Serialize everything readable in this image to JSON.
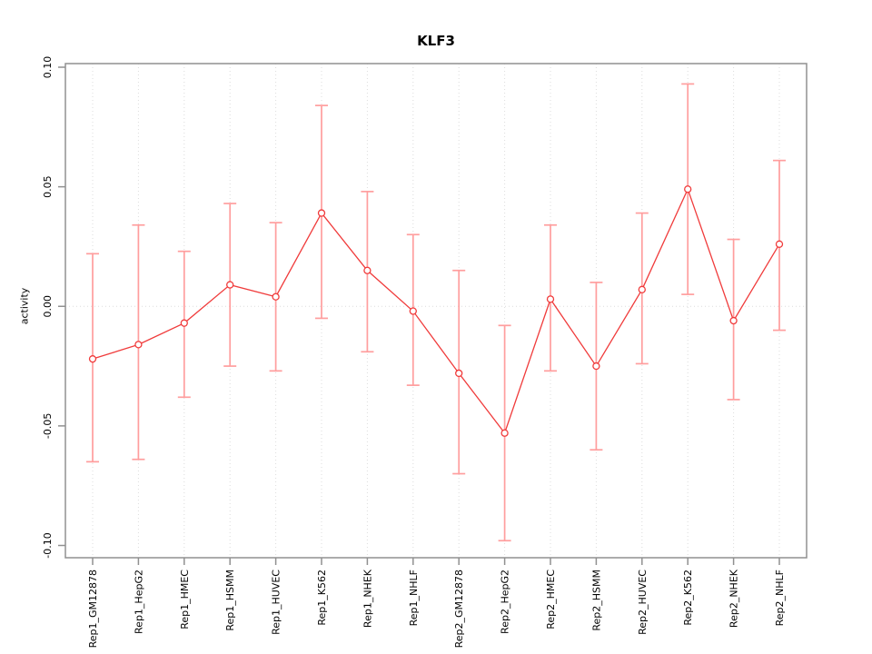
{
  "chart_data": {
    "type": "line",
    "title": "KLF3",
    "xlabel": "",
    "ylabel": "activity",
    "ylim": [
      -0.1,
      0.1
    ],
    "yticks": [
      -0.1,
      -0.05,
      0.0,
      0.05,
      0.1
    ],
    "ytick_labels": [
      "-0.10",
      "-0.05",
      "0.00",
      "0.05",
      "0.10"
    ],
    "grid": {
      "vertical": "dotted line at every category",
      "horizontal_at": 0,
      "style": "dotted"
    },
    "legend": "none",
    "marker": "open-circle",
    "categories": [
      "Rep1_GM12878",
      "Rep1_HepG2",
      "Rep1_HMEC",
      "Rep1_HSMM",
      "Rep1_HUVEC",
      "Rep1_K562",
      "Rep1_NHEK",
      "Rep1_NHLF",
      "Rep2_GM12878",
      "Rep2_HepG2",
      "Rep2_HMEC",
      "Rep2_HSMM",
      "Rep2_HUVEC",
      "Rep2_K562",
      "Rep2_NHEK",
      "Rep2_NHLF"
    ],
    "series": [
      {
        "name": "KLF3 activity",
        "values": [
          -0.022,
          -0.016,
          -0.007,
          0.009,
          0.004,
          0.039,
          0.015,
          -0.002,
          -0.028,
          -0.053,
          0.003,
          -0.025,
          0.007,
          0.049,
          -0.006,
          0.026
        ],
        "error_upper": [
          0.022,
          0.034,
          0.023,
          0.043,
          0.035,
          0.084,
          0.048,
          0.03,
          0.015,
          -0.008,
          0.034,
          0.01,
          0.039,
          0.093,
          0.028,
          0.061
        ],
        "error_lower": [
          -0.065,
          -0.064,
          -0.038,
          -0.025,
          -0.027,
          -0.005,
          -0.019,
          -0.033,
          -0.07,
          -0.098,
          -0.027,
          -0.06,
          -0.024,
          0.005,
          -0.039,
          -0.01
        ]
      }
    ],
    "colors": {
      "line": "#f03b3b",
      "point": "#f03b3b",
      "error_bar": "#ff9e9e",
      "grid": "#dcdcdc",
      "frame": "#909090",
      "text": "#000000",
      "background": "#ffffff"
    }
  }
}
